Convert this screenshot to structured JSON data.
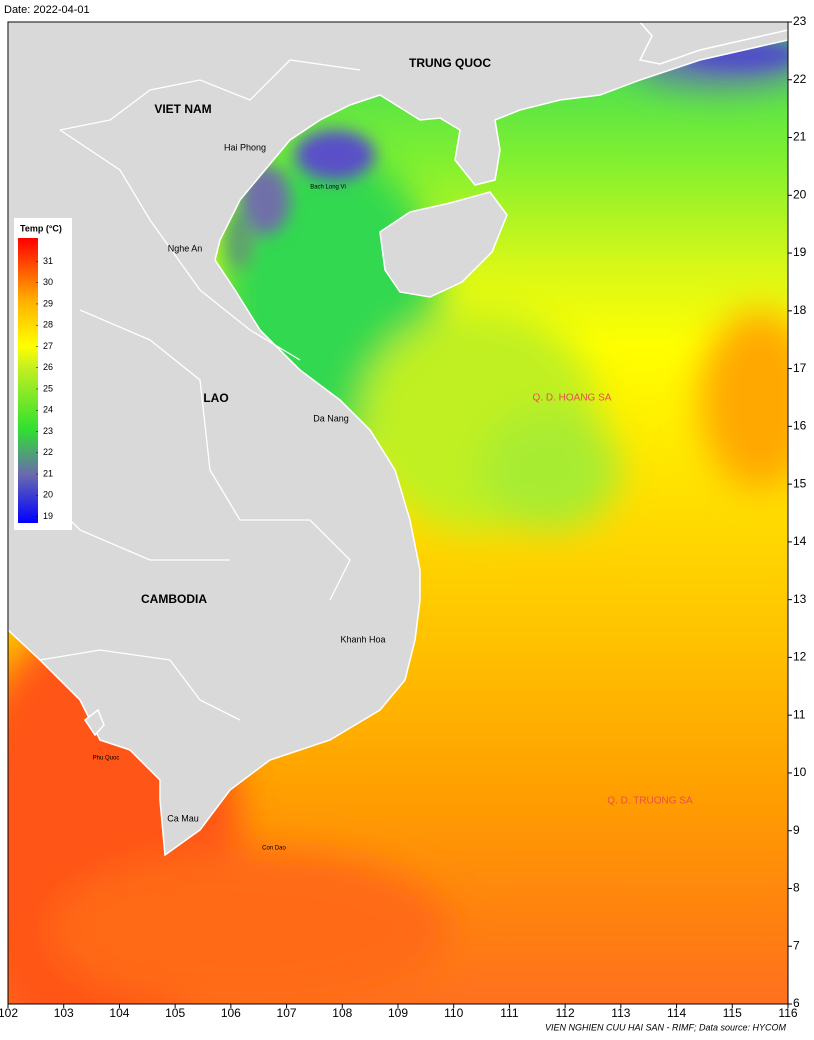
{
  "header": {
    "date": "Date: 2022-04-01"
  },
  "map": {
    "xlim": [
      102,
      116
    ],
    "xticks": [
      102,
      103,
      104,
      105,
      106,
      107,
      108,
      109,
      110,
      111,
      112,
      113,
      114,
      115,
      116
    ],
    "ylim": [
      6,
      23
    ],
    "yticks": [
      6,
      7,
      8,
      9,
      10,
      11,
      12,
      13,
      14,
      15,
      16,
      17,
      18,
      19,
      20,
      21,
      22,
      23
    ],
    "labels": [
      "TRUNG QUOC",
      "VIET NAM",
      "Hai Phong",
      "Bach Long Vi",
      "Nghe An",
      "LAO",
      "Da Nang",
      "Q. D. HOANG SA",
      "CAMBODIA",
      "Khanh Hoa",
      "Phu Quoc",
      "Ca Mau",
      "Con Dao",
      "Q. D. TRUONG SA"
    ]
  },
  "colorbar": {
    "title": "Temp (°C)",
    "range": [
      18.7,
      32.1
    ],
    "ticks": [
      19,
      20,
      21,
      22,
      23,
      24,
      25,
      26,
      27,
      28,
      29,
      30,
      31
    ]
  },
  "footer": {
    "credit": "VIEN NGHIEN CUU HAI SAN - RIMF; Data source: HYCOM"
  }
}
